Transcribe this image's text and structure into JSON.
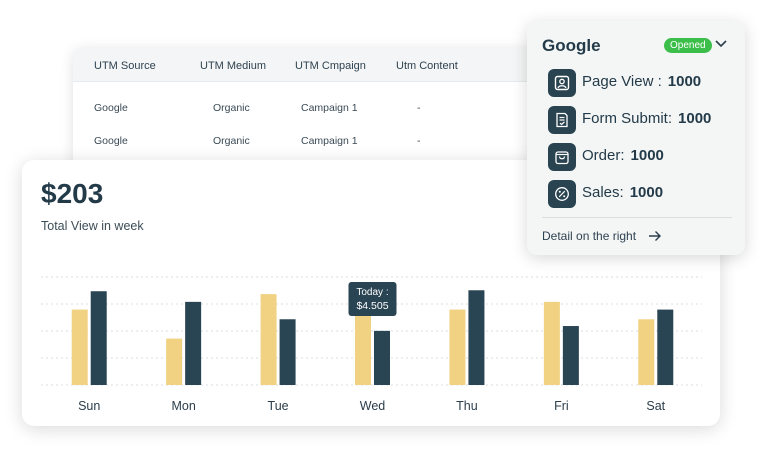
{
  "utm_table": {
    "columns": [
      "UTM Source",
      "UTM Medium",
      "UTM Cmpaign",
      "Utm Content"
    ],
    "rows": [
      [
        "Google",
        "Organic",
        "Campaign 1",
        "-"
      ],
      [
        "Google",
        "Organic",
        "Campaign 1",
        "-"
      ]
    ]
  },
  "summary": {
    "total": "$203",
    "subtitle": "Total View in week"
  },
  "chart_data": {
    "type": "bar",
    "categories": [
      "Sun",
      "Mon",
      "Tue",
      "Wed",
      "Thu",
      "Fri",
      "Sat"
    ],
    "series": [
      {
        "color": "#f1d283",
        "values": [
          78,
          48,
          94,
          88,
          78,
          86,
          68
        ]
      },
      {
        "color": "#294452",
        "values": [
          97,
          86,
          68,
          56,
          98,
          61,
          78
        ]
      }
    ],
    "ylim": [
      0,
      120
    ],
    "grid": true,
    "tooltip": {
      "category": "Wed",
      "label": "Today :",
      "value": "$4.505"
    }
  },
  "google_panel": {
    "title": "Google",
    "status": "Opened",
    "status_color": "#3cbf4a",
    "items": [
      {
        "icon": "user-badge-icon",
        "label": "Page View :",
        "value": "1000"
      },
      {
        "icon": "form-check-icon",
        "label": "Form Submit:",
        "value": "1000"
      },
      {
        "icon": "shopping-bag-icon",
        "label": "Order:",
        "value": "1000"
      },
      {
        "icon": "percent-icon",
        "label": "Sales:",
        "value": "1000"
      }
    ],
    "detail_link": "Detail on the right"
  }
}
